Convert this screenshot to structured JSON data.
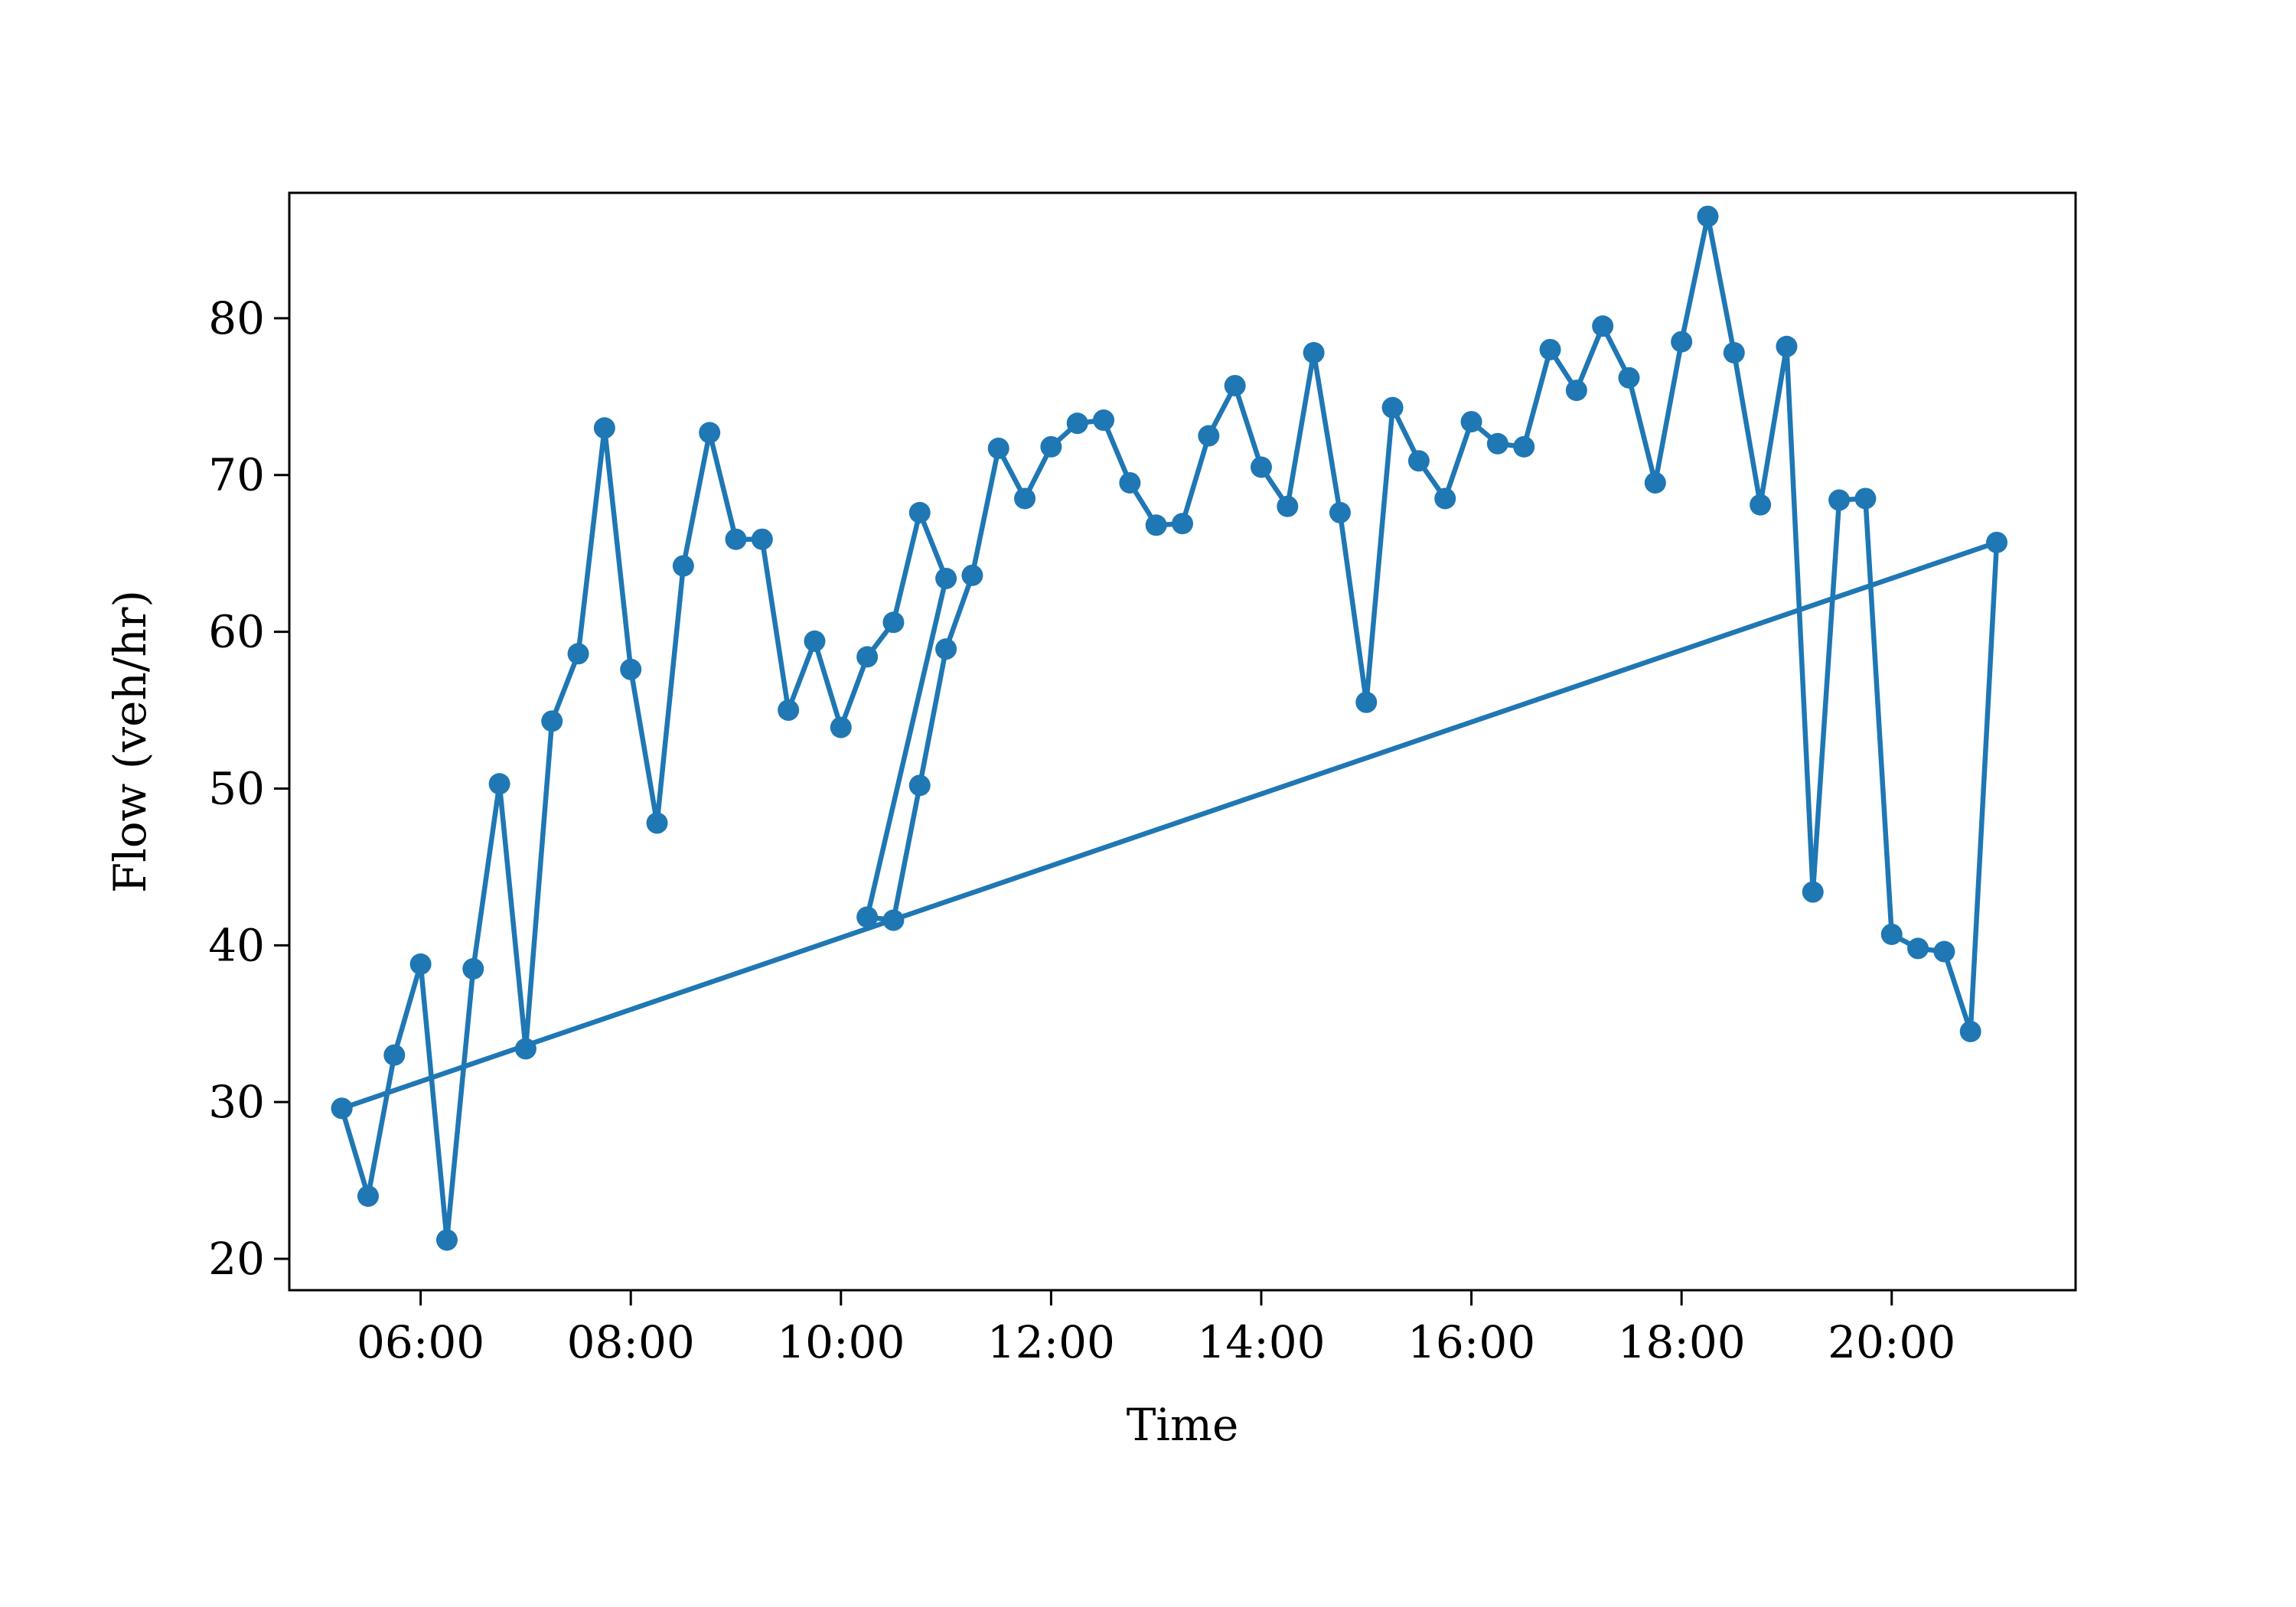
{
  "chart_data": {
    "type": "line",
    "title": "",
    "xlabel": "Time",
    "ylabel": "Flow (veh/hr)",
    "x_unit": "time of day (HH:MM)",
    "xlim": [
      "04:45",
      "21:45"
    ],
    "ylim": [
      18,
      88
    ],
    "x_ticks": [
      "06:00",
      "08:00",
      "10:00",
      "12:00",
      "14:00",
      "16:00",
      "18:00",
      "20:00"
    ],
    "y_ticks": [
      20,
      30,
      40,
      50,
      60,
      70,
      80
    ],
    "grid": false,
    "legend": "none",
    "series_color": "#1f77b4",
    "series": [
      {
        "points": [
          {
            "x": "05:15",
            "y": 29.6
          },
          {
            "x": "05:30",
            "y": 24.0
          },
          {
            "x": "05:45",
            "y": 33.0
          },
          {
            "x": "06:00",
            "y": 38.8
          },
          {
            "x": "06:15",
            "y": 21.2
          },
          {
            "x": "06:30",
            "y": 38.5
          },
          {
            "x": "06:45",
            "y": 50.3
          },
          {
            "x": "07:00",
            "y": 33.4
          },
          {
            "x": "07:15",
            "y": 54.3
          },
          {
            "x": "07:30",
            "y": 58.6
          },
          {
            "x": "07:45",
            "y": 73.0
          },
          {
            "x": "08:00",
            "y": 57.6
          },
          {
            "x": "08:15",
            "y": 47.8
          },
          {
            "x": "08:30",
            "y": 64.2
          },
          {
            "x": "08:45",
            "y": 72.7
          },
          {
            "x": "09:00",
            "y": 65.9
          },
          {
            "x": "09:15",
            "y": 65.9
          },
          {
            "x": "09:30",
            "y": 55.0
          },
          {
            "x": "09:45",
            "y": 59.4
          },
          {
            "x": "10:00",
            "y": 53.9
          },
          {
            "x": "10:15",
            "y": 58.4
          },
          {
            "x": "10:30",
            "y": 60.6
          },
          {
            "x": "10:45",
            "y": 67.6
          },
          {
            "x": "11:00",
            "y": 63.4
          },
          {
            "x": "10:15",
            "y": 41.8
          },
          {
            "x": "10:30",
            "y": 41.6
          },
          {
            "x": "10:45",
            "y": 50.2
          },
          {
            "x": "11:00",
            "y": 58.9
          },
          {
            "x": "11:15",
            "y": 63.6
          },
          {
            "x": "11:30",
            "y": 71.7
          },
          {
            "x": "11:45",
            "y": 68.5
          },
          {
            "x": "12:00",
            "y": 71.8
          },
          {
            "x": "12:15",
            "y": 73.3
          },
          {
            "x": "12:30",
            "y": 73.5
          },
          {
            "x": "12:45",
            "y": 69.5
          },
          {
            "x": "13:00",
            "y": 66.8
          },
          {
            "x": "13:15",
            "y": 66.9
          },
          {
            "x": "13:30",
            "y": 72.5
          },
          {
            "x": "13:45",
            "y": 75.7
          },
          {
            "x": "14:00",
            "y": 70.5
          },
          {
            "x": "14:15",
            "y": 68.0
          },
          {
            "x": "14:30",
            "y": 77.8
          },
          {
            "x": "14:45",
            "y": 67.6
          },
          {
            "x": "15:00",
            "y": 55.5
          },
          {
            "x": "15:15",
            "y": 74.3
          },
          {
            "x": "15:30",
            "y": 70.9
          },
          {
            "x": "15:45",
            "y": 68.5
          },
          {
            "x": "16:00",
            "y": 73.4
          },
          {
            "x": "16:15",
            "y": 72.0
          },
          {
            "x": "16:30",
            "y": 71.8
          },
          {
            "x": "16:45",
            "y": 78.0
          },
          {
            "x": "17:00",
            "y": 75.4
          },
          {
            "x": "17:15",
            "y": 79.5
          },
          {
            "x": "17:30",
            "y": 76.2
          },
          {
            "x": "17:45",
            "y": 69.5
          },
          {
            "x": "18:00",
            "y": 78.5
          },
          {
            "x": "18:15",
            "y": 86.5
          },
          {
            "x": "18:30",
            "y": 77.8
          },
          {
            "x": "18:45",
            "y": 68.1
          },
          {
            "x": "19:00",
            "y": 78.2
          },
          {
            "x": "19:15",
            "y": 43.4
          },
          {
            "x": "19:30",
            "y": 68.4
          },
          {
            "x": "19:45",
            "y": 68.5
          },
          {
            "x": "20:00",
            "y": 40.7
          },
          {
            "x": "20:15",
            "y": 39.8
          },
          {
            "x": "20:30",
            "y": 39.6
          },
          {
            "x": "20:45",
            "y": 34.5
          },
          {
            "x": "21:00",
            "y": 65.7
          },
          {
            "x": "05:15",
            "y": 29.6
          }
        ]
      }
    ]
  }
}
